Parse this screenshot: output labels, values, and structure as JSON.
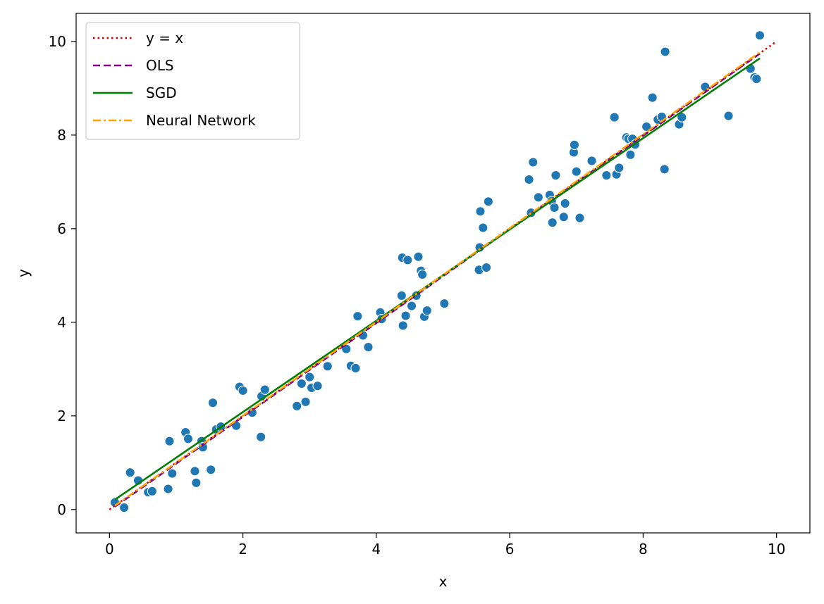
{
  "chart_data": {
    "type": "scatter",
    "title": "",
    "xlabel": "x",
    "ylabel": "y",
    "xlim": [
      -0.5,
      10.5
    ],
    "ylim": [
      -0.5,
      10.6
    ],
    "x_ticks": [
      0,
      2,
      4,
      6,
      8,
      10
    ],
    "y_ticks": [
      0,
      2,
      4,
      6,
      8,
      10
    ],
    "grid": false,
    "legend_position": "top-left",
    "points": {
      "color": "#1f77b4",
      "x": [
        0.08,
        0.22,
        0.31,
        0.43,
        0.58,
        0.64,
        0.88,
        0.9,
        0.94,
        1.14,
        1.18,
        1.28,
        1.3,
        1.38,
        1.4,
        1.52,
        1.55,
        1.6,
        1.67,
        1.9,
        1.95,
        2.0,
        2.14,
        2.27,
        2.28,
        2.33,
        2.81,
        2.88,
        2.94,
        3.0,
        3.03,
        3.12,
        3.27,
        3.55,
        3.62,
        3.69,
        3.72,
        3.8,
        3.88,
        4.06,
        4.08,
        4.38,
        4.39,
        4.4,
        4.44,
        4.47,
        4.53,
        4.6,
        4.63,
        4.67,
        4.69,
        4.72,
        4.76,
        5.02,
        5.54,
        5.55,
        5.56,
        5.6,
        5.65,
        5.68,
        6.29,
        6.32,
        6.35,
        6.43,
        6.6,
        6.63,
        6.64,
        6.67,
        6.69,
        6.81,
        6.83,
        6.96,
        6.97,
        7.0,
        7.05,
        7.23,
        7.45,
        7.57,
        7.6,
        7.64,
        7.75,
        7.78,
        7.81,
        7.84,
        7.88,
        8.05,
        8.14,
        8.22,
        8.28,
        8.32,
        8.33,
        8.54,
        8.58,
        8.93,
        9.28,
        9.61,
        9.67,
        9.7,
        9.75
      ],
      "y": [
        0.15,
        0.04,
        0.79,
        0.62,
        0.37,
        0.39,
        0.44,
        1.46,
        0.77,
        1.65,
        1.51,
        0.82,
        0.57,
        1.46,
        1.33,
        0.85,
        2.28,
        1.71,
        1.77,
        1.79,
        2.62,
        2.54,
        2.07,
        1.55,
        2.42,
        2.56,
        2.21,
        2.69,
        2.3,
        2.83,
        2.6,
        2.64,
        3.06,
        3.43,
        3.07,
        3.02,
        4.13,
        3.72,
        3.47,
        4.21,
        4.07,
        4.57,
        5.38,
        3.93,
        4.14,
        5.33,
        4.35,
        4.57,
        5.4,
        5.1,
        5.02,
        4.12,
        4.25,
        4.4,
        5.12,
        5.6,
        6.37,
        6.02,
        5.17,
        6.58,
        7.05,
        6.34,
        7.42,
        6.67,
        6.72,
        6.59,
        6.13,
        6.45,
        7.14,
        6.25,
        6.54,
        7.63,
        7.79,
        7.22,
        6.23,
        7.45,
        7.14,
        8.38,
        7.16,
        7.3,
        7.95,
        7.92,
        7.58,
        7.92,
        7.8,
        8.18,
        8.8,
        8.33,
        8.39,
        7.27,
        9.78,
        8.23,
        8.38,
        9.03,
        8.41,
        9.42,
        9.23,
        9.2,
        10.13
      ]
    },
    "series": [
      {
        "name": "y = x",
        "color": "#d40000",
        "style": "dotted",
        "x": [
          0,
          10
        ],
        "y": [
          0,
          10
        ]
      },
      {
        "name": "OLS",
        "color": "#800080",
        "style": "dashed",
        "x": [
          0.08,
          9.75
        ],
        "y": [
          0.06,
          9.74
        ]
      },
      {
        "name": "SGD",
        "color": "#008000",
        "style": "solid",
        "x": [
          0.08,
          9.75
        ],
        "y": [
          0.21,
          9.64
        ]
      },
      {
        "name": "Neural Network",
        "color": "#ffa500",
        "style": "dashdot",
        "x": [
          0.08,
          9.75
        ],
        "y": [
          0.08,
          9.77
        ]
      }
    ]
  }
}
